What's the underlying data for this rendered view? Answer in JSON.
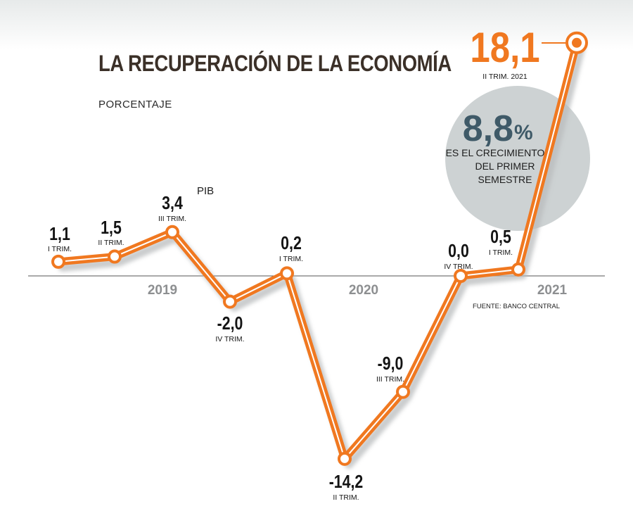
{
  "title": "LA RECUPERACIÓN DE LA ECONOMÍA",
  "subtitle": "PORCENTAJE",
  "series_label": "PIB",
  "source": "FUENTE: BANCO CENTRAL",
  "colors": {
    "line": "#f07820",
    "line_highlight": "#ffffff",
    "title": "#3b3028",
    "highlight_value": "#f07820",
    "circle_bg": "#cdd2d3",
    "circle_value": "#3f5a68",
    "axis": "#555555",
    "year_label": "#8d8f91"
  },
  "callout": {
    "value": "8,8",
    "unit": "%",
    "lines": [
      "ES EL CRECIMIENTO",
      "DEL PRIMER",
      "SEMESTRE"
    ]
  },
  "chart_data": {
    "type": "line",
    "title": "LA RECUPERACIÓN DE LA ECONOMÍA",
    "subtitle": "PORCENTAJE",
    "series": [
      {
        "name": "PIB",
        "points": [
          {
            "year": "2019",
            "quarter": "I TRIM.",
            "value": 1.1,
            "label": "1,1"
          },
          {
            "year": "2019",
            "quarter": "II TRIM.",
            "value": 1.5,
            "label": "1,5"
          },
          {
            "year": "2019",
            "quarter": "III TRIM.",
            "value": 3.4,
            "label": "3,4"
          },
          {
            "year": "2019",
            "quarter": "IV TRIM.",
            "value": -2.0,
            "label": "-2,0"
          },
          {
            "year": "2020",
            "quarter": "I TRIM.",
            "value": 0.2,
            "label": "0,2"
          },
          {
            "year": "2020",
            "quarter": "II TRIM.",
            "value": -14.2,
            "label": "-14,2"
          },
          {
            "year": "2020",
            "quarter": "III TRIM.",
            "value": -9.0,
            "label": "-9,0"
          },
          {
            "year": "2020",
            "quarter": "IV TRIM.",
            "value": 0.0,
            "label": "0,0"
          },
          {
            "year": "2021",
            "quarter": "I TRIM.",
            "value": 0.5,
            "label": "0,5"
          },
          {
            "year": "2021",
            "quarter": "II TRIM. 2021",
            "value": 18.1,
            "label": "18,1"
          }
        ]
      }
    ],
    "years": [
      "2019",
      "2020",
      "2021"
    ],
    "zero_line": true,
    "grid": false,
    "legend": "none"
  }
}
